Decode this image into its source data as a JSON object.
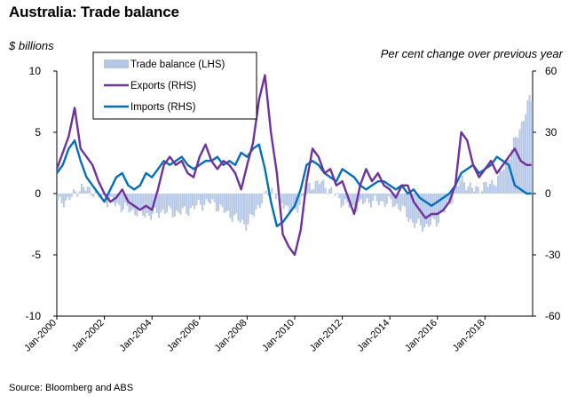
{
  "title": "Australia: Trade balance",
  "ylabel_left": "$ billions",
  "ylabel_right": "Per cent change over previous year",
  "source": "Source: Bloomberg and ABS",
  "chart_data": {
    "type": "bar+line",
    "ylim_left": [
      -10,
      10
    ],
    "ylim_right": [
      -60,
      60
    ],
    "yticks_left": [
      "10",
      "5",
      "0",
      "-5",
      "-10"
    ],
    "yticks_right": [
      "60",
      "30",
      "0",
      "-30",
      "-60"
    ],
    "xlim": [
      2000.0,
      2020.0
    ],
    "xticks": [
      "Jan-2000",
      "Jan-2002",
      "Jan-2004",
      "Jan-2006",
      "Jan-2008",
      "Jan-2010",
      "Jan-2012",
      "Jan-2014",
      "Jan-2016",
      "Jan-2018"
    ],
    "legend": [
      "Trade balance (LHS)",
      "Exports (RHS)",
      "Imports (RHS)"
    ],
    "colors": {
      "trade_balance": "#b4c7e7",
      "exports": "#7030a0",
      "imports": "#0070c0"
    },
    "series": [
      {
        "name": "Trade balance (LHS)",
        "axis": "left",
        "x": [
          2000.0,
          2000.5,
          2001.0,
          2001.5,
          2002.0,
          2002.5,
          2003.0,
          2003.5,
          2004.0,
          2004.5,
          2005.0,
          2005.5,
          2006.0,
          2006.5,
          2007.0,
          2007.5,
          2008.0,
          2008.5,
          2009.0,
          2009.5,
          2010.0,
          2010.5,
          2011.0,
          2011.5,
          2012.0,
          2012.5,
          2013.0,
          2013.5,
          2014.0,
          2014.5,
          2015.0,
          2015.5,
          2016.0,
          2016.5,
          2017.0,
          2017.5,
          2018.0,
          2018.5,
          2019.0,
          2019.5,
          2019.9
        ],
        "values": [
          -0.8,
          -0.5,
          0.5,
          0.2,
          -0.5,
          -0.9,
          -1.3,
          -1.6,
          -1.8,
          -1.4,
          -1.6,
          -1.4,
          -0.9,
          -0.7,
          -1.4,
          -2.0,
          -2.6,
          -0.9,
          0.4,
          -0.8,
          -1.6,
          0.4,
          1.0,
          0.3,
          -0.7,
          -1.2,
          -0.6,
          -0.7,
          -0.7,
          -1.2,
          -2.5,
          -2.7,
          -2.2,
          -0.8,
          1.2,
          0.3,
          0.6,
          1.1,
          3.0,
          5.5,
          7.8
        ]
      },
      {
        "name": "Exports (RHS)",
        "axis": "right",
        "x": [
          2000.0,
          2000.25,
          2000.5,
          2000.75,
          2001.0,
          2001.25,
          2001.5,
          2001.75,
          2002.0,
          2002.25,
          2002.5,
          2002.75,
          2003.0,
          2003.25,
          2003.5,
          2003.75,
          2004.0,
          2004.25,
          2004.5,
          2004.75,
          2005.0,
          2005.25,
          2005.5,
          2005.75,
          2006.0,
          2006.25,
          2006.5,
          2006.75,
          2007.0,
          2007.25,
          2007.5,
          2007.75,
          2008.0,
          2008.25,
          2008.5,
          2008.75,
          2009.0,
          2009.25,
          2009.5,
          2009.75,
          2010.0,
          2010.25,
          2010.5,
          2010.75,
          2011.0,
          2011.25,
          2011.5,
          2011.75,
          2012.0,
          2012.25,
          2012.5,
          2012.75,
          2013.0,
          2013.25,
          2013.5,
          2013.75,
          2014.0,
          2014.25,
          2014.5,
          2014.75,
          2015.0,
          2015.25,
          2015.5,
          2015.75,
          2016.0,
          2016.25,
          2016.5,
          2016.75,
          2017.0,
          2017.25,
          2017.5,
          2017.75,
          2018.0,
          2018.25,
          2018.5,
          2018.75,
          2019.0,
          2019.25,
          2019.5,
          2019.75,
          2019.95
        ],
        "values": [
          12,
          20,
          28,
          42,
          22,
          18,
          14,
          6,
          0,
          -4,
          -2,
          2,
          -4,
          -6,
          -8,
          -6,
          -8,
          2,
          14,
          18,
          14,
          16,
          10,
          8,
          18,
          24,
          16,
          12,
          16,
          14,
          10,
          2,
          14,
          25,
          46,
          58,
          30,
          10,
          -20,
          -26,
          -30,
          -18,
          6,
          22,
          18,
          10,
          12,
          4,
          6,
          -2,
          -10,
          4,
          12,
          6,
          10,
          4,
          2,
          -2,
          4,
          4,
          -4,
          -8,
          -12,
          -10,
          -10,
          -8,
          -4,
          4,
          30,
          26,
          14,
          8,
          12,
          16,
          10,
          14,
          18,
          22,
          16,
          14,
          14
        ]
      },
      {
        "name": "Imports (RHS)",
        "axis": "right",
        "x": [
          2000.0,
          2000.25,
          2000.5,
          2000.75,
          2001.0,
          2001.25,
          2001.5,
          2001.75,
          2002.0,
          2002.25,
          2002.5,
          2002.75,
          2003.0,
          2003.25,
          2003.5,
          2003.75,
          2004.0,
          2004.25,
          2004.5,
          2004.75,
          2005.0,
          2005.25,
          2005.5,
          2005.75,
          2006.0,
          2006.25,
          2006.5,
          2006.75,
          2007.0,
          2007.25,
          2007.5,
          2007.75,
          2008.0,
          2008.25,
          2008.5,
          2008.75,
          2009.0,
          2009.25,
          2009.5,
          2009.75,
          2010.0,
          2010.25,
          2010.5,
          2010.75,
          2011.0,
          2011.25,
          2011.5,
          2011.75,
          2012.0,
          2012.25,
          2012.5,
          2012.75,
          2013.0,
          2013.25,
          2013.5,
          2013.75,
          2014.0,
          2014.25,
          2014.5,
          2014.75,
          2015.0,
          2015.25,
          2015.5,
          2015.75,
          2016.0,
          2016.25,
          2016.5,
          2016.75,
          2017.0,
          2017.25,
          2017.5,
          2017.75,
          2018.0,
          2018.25,
          2018.5,
          2018.75,
          2019.0,
          2019.25,
          2019.5,
          2019.75,
          2019.95
        ],
        "values": [
          10,
          14,
          22,
          26,
          16,
          8,
          4,
          0,
          -4,
          2,
          8,
          10,
          4,
          2,
          4,
          10,
          8,
          12,
          16,
          14,
          16,
          18,
          14,
          12,
          14,
          16,
          16,
          18,
          14,
          16,
          14,
          20,
          18,
          22,
          24,
          12,
          -4,
          -16,
          -14,
          -10,
          -6,
          2,
          14,
          16,
          14,
          10,
          8,
          6,
          12,
          10,
          8,
          4,
          2,
          4,
          6,
          6,
          4,
          2,
          4,
          0,
          2,
          -2,
          -4,
          -6,
          -4,
          -2,
          0,
          4,
          10,
          12,
          14,
          10,
          12,
          14,
          18,
          16,
          14,
          4,
          2,
          0,
          0
        ]
      }
    ]
  }
}
